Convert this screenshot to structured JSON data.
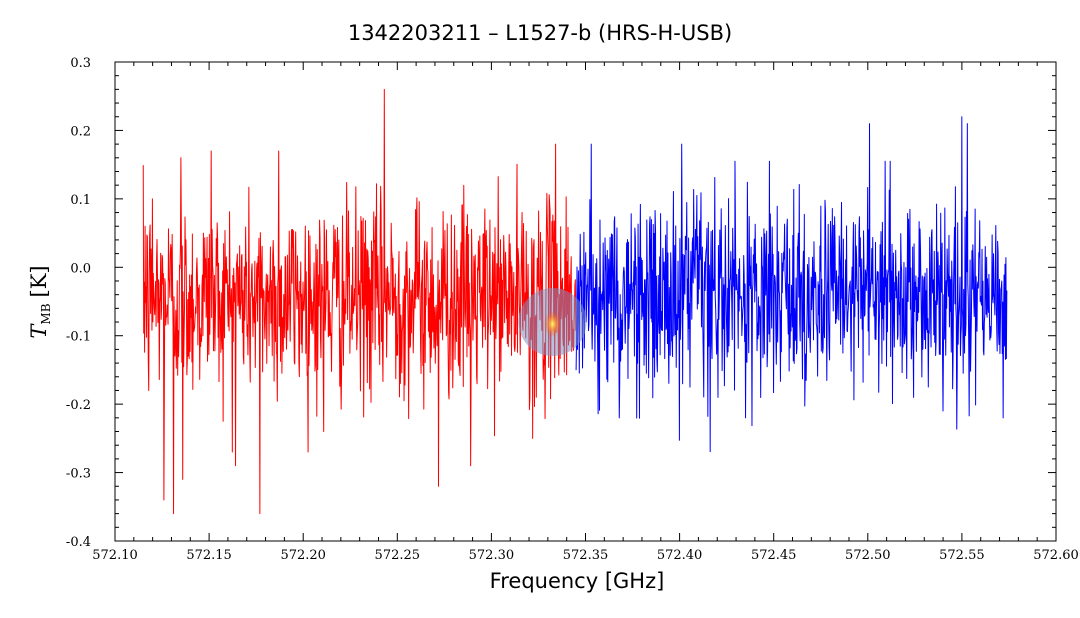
{
  "chart_data": {
    "type": "line",
    "title": "1342203211 – L1527-b (HRS-H-USB)",
    "xlabel": "Frequency [GHz]",
    "ylabel": {
      "symbol": "T",
      "subscript": "MB",
      "unit": "[K]"
    },
    "xlim": [
      572.1,
      572.6
    ],
    "ylim": [
      -0.4,
      0.3
    ],
    "xticks": [
      "572.10",
      "572.15",
      "572.20",
      "572.25",
      "572.30",
      "572.35",
      "572.40",
      "572.45",
      "572.50",
      "572.55",
      "572.60"
    ],
    "yticks": [
      "-0.4",
      "-0.3",
      "-0.2",
      "-0.1",
      "0.0",
      "0.1",
      "0.2",
      "0.3"
    ],
    "grid": false,
    "series": [
      {
        "color": "#ff0000",
        "x_range": [
          572.115,
          572.345
        ],
        "noise_sigma_K": 0.07,
        "extremes": [
          {
            "x": 572.116,
            "y": 0.06
          },
          {
            "x": 572.118,
            "y": -0.18
          },
          {
            "x": 572.12,
            "y": 0.1
          },
          {
            "x": 572.126,
            "y": -0.34
          },
          {
            "x": 572.131,
            "y": -0.36
          },
          {
            "x": 572.135,
            "y": 0.16
          },
          {
            "x": 572.136,
            "y": -0.31
          },
          {
            "x": 572.151,
            "y": 0.17
          },
          {
            "x": 572.164,
            "y": -0.29
          },
          {
            "x": 572.177,
            "y": -0.36
          },
          {
            "x": 572.187,
            "y": 0.17
          },
          {
            "x": 572.211,
            "y": -0.24
          },
          {
            "x": 572.243,
            "y": 0.26
          },
          {
            "x": 572.272,
            "y": -0.32
          },
          {
            "x": 572.289,
            "y": -0.29
          },
          {
            "x": 572.322,
            "y": -0.25
          },
          {
            "x": 572.334,
            "y": 0.18
          }
        ]
      },
      {
        "color": "#0000ff",
        "x_range": [
          572.345,
          572.574
        ],
        "noise_sigma_K": 0.07,
        "extremes": [
          {
            "x": 572.353,
            "y": 0.18
          },
          {
            "x": 572.368,
            "y": -0.22
          },
          {
            "x": 572.401,
            "y": 0.18
          },
          {
            "x": 572.435,
            "y": -0.22
          },
          {
            "x": 572.501,
            "y": 0.21
          },
          {
            "x": 572.55,
            "y": 0.22
          },
          {
            "x": 572.553,
            "y": 0.21
          },
          {
            "x": 572.572,
            "y": -0.22
          }
        ]
      }
    ],
    "marker": {
      "label": "",
      "x": 572.3325,
      "y": -0.08,
      "fill_color": "#8090c0"
    }
  }
}
